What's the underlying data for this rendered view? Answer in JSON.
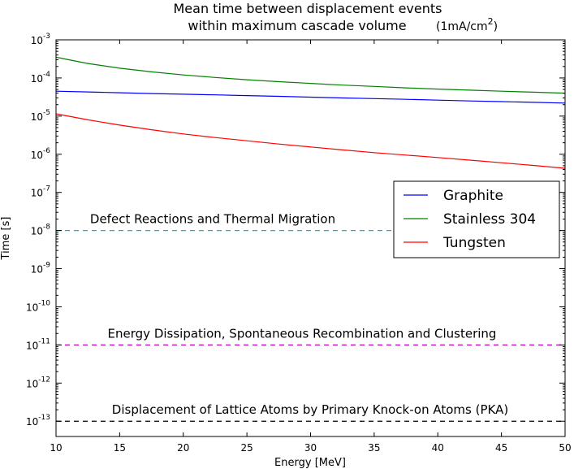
{
  "chart_data": {
    "type": "line",
    "title_line1": "Mean time between displacement events",
    "title_line2": "within maximum cascade volume",
    "title_unit_base": "(1mA/cm",
    "title_unit_exp": "2",
    "title_unit_close": ")",
    "xlabel": "Energy [MeV]",
    "ylabel": "Time [s]",
    "xlim": [
      10,
      50
    ],
    "ylim_log10": [
      -13.4,
      -3
    ],
    "yscale": "log",
    "xticks": [
      "10",
      "15",
      "20",
      "25",
      "30",
      "35",
      "40",
      "45",
      "50"
    ],
    "yticks": [
      {
        "base": "10",
        "exp": "-3"
      },
      {
        "base": "10",
        "exp": "-4"
      },
      {
        "base": "10",
        "exp": "-5"
      },
      {
        "base": "10",
        "exp": "-6"
      },
      {
        "base": "10",
        "exp": "-7"
      },
      {
        "base": "10",
        "exp": "-8"
      },
      {
        "base": "10",
        "exp": "-9"
      },
      {
        "base": "10",
        "exp": "-10"
      },
      {
        "base": "10",
        "exp": "-11"
      },
      {
        "base": "10",
        "exp": "-12"
      },
      {
        "base": "10",
        "exp": "-13"
      }
    ],
    "x": [
      10,
      12.5,
      15,
      17.5,
      20,
      22.5,
      25,
      27.5,
      30,
      32.5,
      35,
      37.5,
      40,
      42.5,
      45,
      47.5,
      50
    ],
    "series": [
      {
        "name": "Graphite",
        "color": "#0000ff",
        "values": [
          4.5e-05,
          4.3e-05,
          4.1e-05,
          3.9e-05,
          3.75e-05,
          3.6e-05,
          3.45e-05,
          3.3e-05,
          3.15e-05,
          3e-05,
          2.88e-05,
          2.75e-05,
          2.62e-05,
          2.5e-05,
          2.4e-05,
          2.3e-05,
          2.2e-05
        ]
      },
      {
        "name": "Stainless 304",
        "color": "#008000",
        "values": [
          0.00035,
          0.00024,
          0.00018,
          0.000145,
          0.00012,
          0.000103,
          9e-05,
          8e-05,
          7.2e-05,
          6.5e-05,
          6e-05,
          5.5e-05,
          5.1e-05,
          4.8e-05,
          4.5e-05,
          4.25e-05,
          4e-05
        ]
      },
      {
        "name": "Tungsten",
        "color": "#ff0000",
        "values": [
          1.15e-05,
          8e-06,
          5.8e-06,
          4.4e-06,
          3.4e-06,
          2.75e-06,
          2.25e-06,
          1.85e-06,
          1.55e-06,
          1.3e-06,
          1.1e-06,
          9.5e-07,
          8.2e-07,
          7e-07,
          6e-07,
          5.1e-07,
          4.3e-07
        ]
      }
    ],
    "reference_lines": [
      {
        "label": "Defect Reactions and Thermal Migration",
        "value": 1e-08,
        "color": "#00bfbf"
      },
      {
        "label": "Energy Dissipation, Spontaneous Recombination and Clustering",
        "value": 1e-11,
        "color": "#bf00bf"
      },
      {
        "label": "Displacement of Lattice Atoms by Primary Knock-on Atoms (PKA)",
        "value": 1e-13,
        "color": "#000000"
      }
    ],
    "legend_placement": "center-right",
    "grid": false
  }
}
